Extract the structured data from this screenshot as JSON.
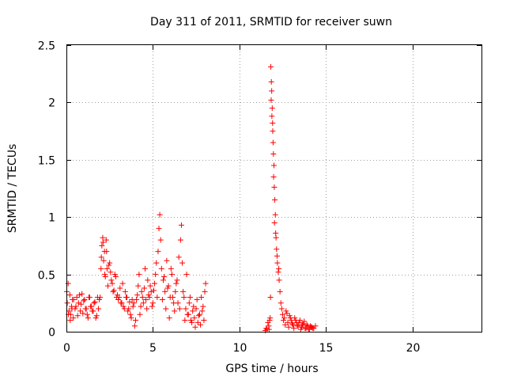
{
  "chart_data": {
    "type": "scatter",
    "title": "Day 311 of 2011, SRMTID for receiver suwn",
    "xlabel": "GPS time / hours",
    "ylabel": "SRMTID / TECUs",
    "xlim": [
      0,
      24
    ],
    "ylim": [
      0,
      2.5
    ],
    "xticks": [
      "0",
      "5",
      "10",
      "15",
      "20"
    ],
    "xtick_values": [
      0,
      5,
      10,
      15,
      20
    ],
    "yticks": [
      "0",
      "0.5",
      "1",
      "1.5",
      "2",
      "2.5"
    ],
    "ytick_values": [
      0,
      0.5,
      1,
      1.5,
      2,
      2.5
    ],
    "grid": true,
    "marker": "plus",
    "color": "#ff0000",
    "series": [
      {
        "x": [
          0.05,
          0.1,
          0.15,
          0.2,
          0.25,
          0.3,
          0.35,
          0.4,
          0.5,
          0.6,
          0.7,
          0.8,
          0.9,
          1.0,
          1.1,
          1.2,
          1.3,
          1.4,
          1.5,
          1.6,
          1.7,
          1.8,
          1.9,
          2.0,
          2.05,
          2.1,
          2.15,
          2.2,
          2.25,
          2.3,
          2.35,
          2.4,
          2.5,
          2.6,
          2.7,
          2.8,
          2.9,
          3.0,
          3.1,
          3.2,
          3.3,
          3.4,
          3.5,
          3.6,
          3.7,
          3.8,
          3.9,
          4.0,
          4.1,
          4.2,
          4.3,
          4.4,
          4.5,
          4.6,
          4.7,
          4.8,
          4.9,
          5.0,
          5.1,
          5.2,
          5.3,
          5.35,
          5.4,
          5.45,
          5.5,
          5.6,
          5.7,
          5.8,
          5.9,
          6.0,
          6.1,
          6.2,
          6.3,
          6.4,
          6.5,
          6.6,
          6.65,
          6.7,
          6.8,
          6.9,
          7.0,
          7.1,
          7.2,
          7.3,
          7.4,
          7.5,
          7.6,
          7.7,
          7.8,
          7.9,
          8.0,
          0.02,
          0.12,
          0.22,
          0.32,
          0.42,
          0.55,
          0.65,
          0.75,
          0.85,
          0.95,
          1.05,
          1.15,
          1.25,
          1.35,
          1.45,
          1.55,
          1.65,
          1.75,
          1.85,
          1.95,
          2.02,
          2.12,
          2.22,
          2.32,
          2.45,
          2.55,
          2.65,
          2.75,
          2.85,
          2.95,
          3.05,
          3.15,
          3.25,
          3.35,
          3.45,
          3.55,
          3.65,
          3.75,
          3.85,
          3.95,
          4.05,
          4.15,
          4.25,
          4.35,
          4.45,
          4.55,
          4.65,
          4.75,
          4.85,
          4.95,
          5.05,
          5.15,
          5.25,
          5.55,
          5.65,
          5.75,
          5.85,
          5.95,
          6.05,
          6.15,
          6.25,
          6.35,
          6.45,
          6.55,
          6.75,
          6.85,
          6.95,
          7.05,
          7.15,
          7.25,
          7.35,
          7.45,
          7.55,
          7.65,
          7.75,
          7.85,
          7.95,
          8.05,
          11.5,
          11.6,
          11.7,
          11.75,
          11.8,
          11.82,
          11.85,
          11.87,
          11.9,
          11.92,
          11.95,
          11.97,
          12.0,
          12.02,
          12.05,
          12.08,
          12.1,
          12.15,
          12.2,
          12.25,
          12.3,
          12.35,
          12.4,
          12.5,
          12.6,
          12.7,
          12.8,
          12.9,
          13.0,
          13.1,
          13.2,
          13.3,
          13.4,
          13.5,
          13.6,
          13.7,
          13.8,
          13.9,
          14.0,
          14.1,
          14.2,
          14.3,
          14.4,
          11.55,
          11.65,
          11.72,
          11.78,
          11.84,
          11.88,
          11.93,
          11.98,
          12.03,
          12.12,
          12.18,
          12.28,
          12.45,
          12.55,
          12.65,
          12.75,
          12.85,
          12.95,
          13.05,
          13.15,
          13.25,
          13.35,
          13.45,
          13.55,
          13.65,
          13.75,
          13.85,
          13.95,
          14.05,
          14.15,
          14.25
        ],
        "y": [
          0.25,
          0.42,
          0.18,
          0.32,
          0.15,
          0.22,
          0.28,
          0.12,
          0.2,
          0.3,
          0.25,
          0.18,
          0.33,
          0.27,
          0.2,
          0.15,
          0.3,
          0.22,
          0.18,
          0.25,
          0.12,
          0.3,
          0.28,
          0.55,
          0.75,
          0.82,
          0.62,
          0.7,
          0.48,
          0.8,
          0.55,
          0.4,
          0.6,
          0.45,
          0.35,
          0.5,
          0.3,
          0.28,
          0.38,
          0.25,
          0.22,
          0.35,
          0.3,
          0.2,
          0.15,
          0.28,
          0.25,
          0.1,
          0.32,
          0.5,
          0.22,
          0.3,
          0.38,
          0.28,
          0.45,
          0.3,
          0.35,
          0.25,
          0.42,
          0.6,
          0.7,
          0.9,
          1.02,
          0.8,
          0.55,
          0.45,
          0.35,
          0.62,
          0.4,
          0.3,
          0.5,
          0.25,
          0.35,
          0.45,
          0.65,
          0.8,
          0.93,
          0.6,
          0.3,
          0.2,
          0.15,
          0.25,
          0.1,
          0.18,
          0.12,
          0.2,
          0.08,
          0.15,
          0.3,
          0.22,
          0.35,
          0.35,
          0.15,
          0.1,
          0.2,
          0.28,
          0.22,
          0.14,
          0.32,
          0.24,
          0.16,
          0.28,
          0.2,
          0.12,
          0.3,
          0.22,
          0.18,
          0.26,
          0.14,
          0.2,
          0.3,
          0.65,
          0.78,
          0.5,
          0.7,
          0.58,
          0.52,
          0.42,
          0.36,
          0.48,
          0.32,
          0.3,
          0.25,
          0.42,
          0.2,
          0.3,
          0.18,
          0.26,
          0.12,
          0.22,
          0.05,
          0.28,
          0.4,
          0.15,
          0.35,
          0.25,
          0.55,
          0.2,
          0.32,
          0.4,
          0.22,
          0.36,
          0.5,
          0.3,
          0.28,
          0.48,
          0.2,
          0.38,
          0.12,
          0.55,
          0.3,
          0.18,
          0.42,
          0.25,
          0.2,
          0.35,
          0.1,
          0.5,
          0.15,
          0.3,
          0.08,
          0.22,
          0.04,
          0.28,
          0.14,
          0.06,
          0.18,
          0.1,
          0.42,
          0.01,
          0.02,
          0.05,
          0.1,
          0.3,
          2.31,
          2.18,
          2.1,
          1.95,
          1.82,
          1.65,
          1.55,
          1.45,
          1.26,
          1.15,
          1.02,
          0.86,
          0.72,
          0.6,
          0.52,
          0.45,
          0.35,
          0.25,
          0.15,
          0.12,
          0.18,
          0.08,
          0.14,
          0.1,
          0.06,
          0.12,
          0.08,
          0.05,
          0.1,
          0.04,
          0.07,
          0.03,
          0.06,
          0.02,
          0.05,
          0.04,
          0.03,
          0.05,
          0.03,
          0.08,
          0.02,
          0.12,
          2.02,
          1.88,
          1.75,
          1.35,
          0.95,
          0.82,
          0.66,
          0.55,
          0.2,
          0.1,
          0.06,
          0.16,
          0.04,
          0.12,
          0.07,
          0.03,
          0.1,
          0.05,
          0.08,
          0.02,
          0.06,
          0.09,
          0.03,
          0.05,
          0.02,
          0.04,
          0.03
        ]
      }
    ]
  }
}
